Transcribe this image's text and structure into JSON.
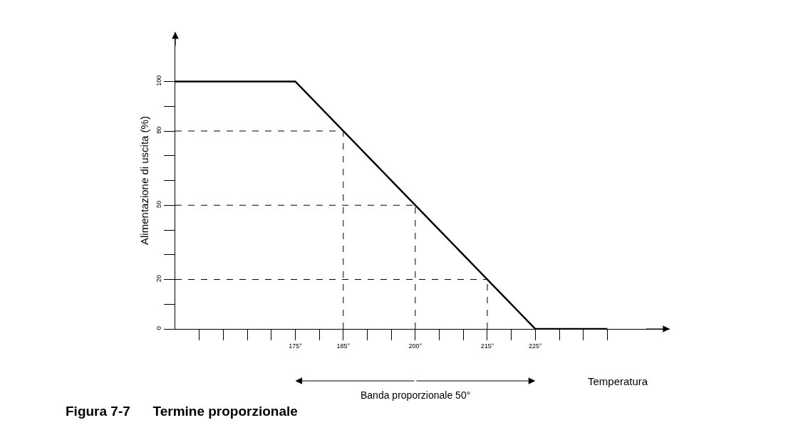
{
  "chart_data": {
    "type": "line",
    "title": "Figura 7-7      Termine proporzionale",
    "xlabel": "Temperatura",
    "ylabel": "Alimentazione di uscita (%)",
    "x": [
      150,
      175,
      225,
      240
    ],
    "series": [
      {
        "color": "#000000",
        "values": [
          100,
          100,
          0,
          0
        ]
      }
    ],
    "xlim": [
      150,
      253
    ],
    "ylim": [
      0,
      120
    ],
    "xticks": [
      {
        "value": 155,
        "label": null
      },
      {
        "value": 160,
        "label": null
      },
      {
        "value": 165,
        "label": null
      },
      {
        "value": 170,
        "label": null
      },
      {
        "value": 175,
        "label": "175°"
      },
      {
        "value": 180,
        "label": null
      },
      {
        "value": 185,
        "label": "185°"
      },
      {
        "value": 190,
        "label": null
      },
      {
        "value": 195,
        "label": null
      },
      {
        "value": 200,
        "label": "200°"
      },
      {
        "value": 205,
        "label": null
      },
      {
        "value": 210,
        "label": null
      },
      {
        "value": 215,
        "label": "215°"
      },
      {
        "value": 220,
        "label": null
      },
      {
        "value": 225,
        "label": "225°"
      },
      {
        "value": 230,
        "label": null
      },
      {
        "value": 235,
        "label": null
      },
      {
        "value": 240,
        "label": null
      }
    ],
    "yticks": [
      0,
      {
        "value": 10,
        "label": null
      },
      20,
      {
        "value": 30,
        "label": null
      },
      {
        "value": 40,
        "label": null
      },
      50,
      {
        "value": 60,
        "label": null
      },
      {
        "value": 70,
        "label": null
      },
      80,
      {
        "value": 90,
        "label": null
      },
      100
    ],
    "ref_lines": [
      {
        "axis": "y",
        "value": 80,
        "line_style": "dashed"
      },
      {
        "axis": "y",
        "value": 50,
        "line_style": "dashed"
      },
      {
        "axis": "y",
        "value": 20,
        "line_style": "dashed"
      },
      {
        "axis": "x",
        "value": 185,
        "line_style": "dashed"
      },
      {
        "axis": "x",
        "value": 200,
        "line_style": "dashed"
      },
      {
        "axis": "x",
        "value": 215,
        "line_style": "dashed"
      }
    ],
    "annotations": [
      "Banda proporzionale 50°"
    ],
    "marker": "none",
    "line_style": "solid"
  }
}
